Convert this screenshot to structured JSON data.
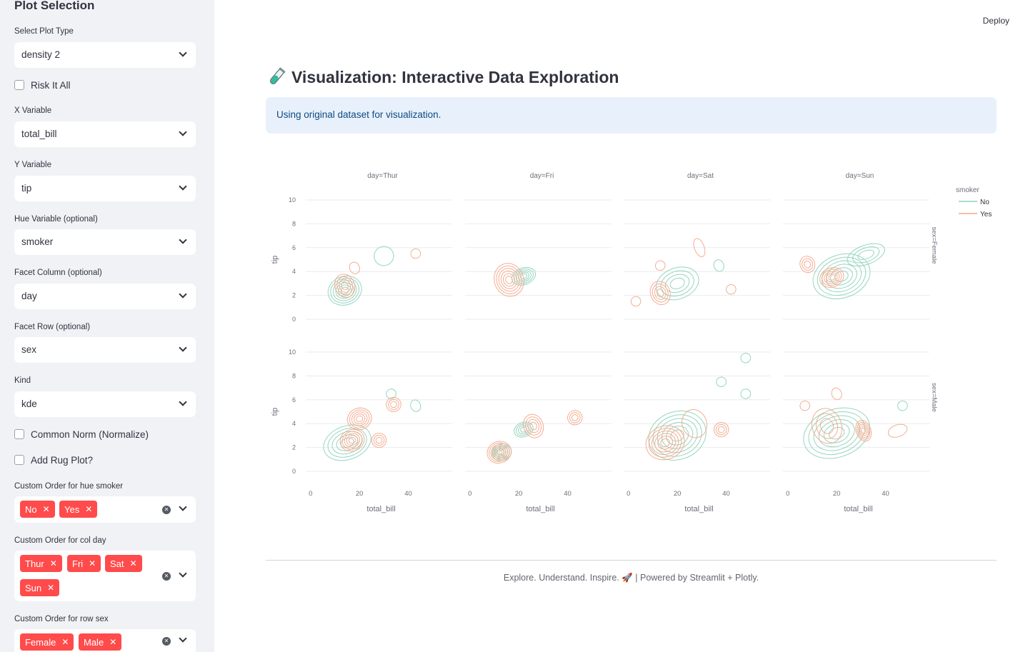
{
  "sidebar": {
    "title": "Plot Selection",
    "plot_type": {
      "label": "Select Plot Type",
      "value": "density 2"
    },
    "risk": {
      "label": "Risk It All"
    },
    "x_var": {
      "label": "X Variable",
      "value": "total_bill"
    },
    "y_var": {
      "label": "Y Variable",
      "value": "tip"
    },
    "hue_var": {
      "label": "Hue Variable (optional)",
      "value": "smoker"
    },
    "facet_col": {
      "label": "Facet Column (optional)",
      "value": "day"
    },
    "facet_row": {
      "label": "Facet Row (optional)",
      "value": "sex"
    },
    "kind": {
      "label": "Kind",
      "value": "kde"
    },
    "common_norm": {
      "label": "Common Norm (Normalize)"
    },
    "rug": {
      "label": "Add Rug Plot?"
    },
    "order_hue": {
      "label": "Custom Order for hue smoker",
      "tags": [
        "No",
        "Yes"
      ]
    },
    "order_col": {
      "label": "Custom Order for col day",
      "tags": [
        "Thur",
        "Fri",
        "Sat",
        "Sun"
      ]
    },
    "order_row": {
      "label": "Custom Order for row sex",
      "tags": [
        "Female",
        "Male"
      ]
    }
  },
  "header": {
    "deploy_label": "Deploy"
  },
  "main": {
    "title_icon": "test-tube-icon",
    "title": "Visualization: Interactive Data Exploration",
    "info": "Using original dataset for visualization.",
    "footer": "Explore. Understand. Inspire. 🚀 | Powered by Streamlit + Plotly."
  },
  "colors": {
    "no": "#8fd3bb",
    "yes": "#f4a98d",
    "accent": "#ff4b4b"
  },
  "chart_data": {
    "type": "density_contour",
    "col_titles": [
      "day=Thur",
      "day=Fri",
      "day=Sat",
      "day=Sun"
    ],
    "row_titles": [
      "sex=Female",
      "sex=Male"
    ],
    "xlabel": "total_bill",
    "ylabel": "tip",
    "x_ticks": [
      0,
      20,
      40
    ],
    "y_ticks": [
      0,
      2,
      4,
      6,
      8,
      10
    ],
    "xlim": [
      -2,
      58
    ],
    "ylim": [
      0,
      10
    ],
    "legend": {
      "title": "smoker",
      "placement": "top-right",
      "items": [
        "No",
        "Yes"
      ]
    },
    "series": [
      {
        "name": "No",
        "color": "#8fd3bb",
        "contours": [
          {
            "row": 0,
            "col": 0,
            "x": 14,
            "y": 2.4,
            "rx": 7,
            "ry": 1.2,
            "levels": 6
          },
          {
            "row": 0,
            "col": 0,
            "x": 30,
            "y": 5.3,
            "rx": 4,
            "ry": 0.8,
            "levels": 1
          },
          {
            "row": 0,
            "col": 1,
            "x": 22,
            "y": 3.6,
            "rx": 5,
            "ry": 0.7,
            "levels": 5
          },
          {
            "row": 0,
            "col": 2,
            "x": 20,
            "y": 3.0,
            "rx": 9,
            "ry": 1.3,
            "levels": 4
          },
          {
            "row": 0,
            "col": 2,
            "x": 37,
            "y": 4.5,
            "rx": 2,
            "ry": 0.5,
            "levels": 1
          },
          {
            "row": 0,
            "col": 3,
            "x": 22,
            "y": 3.6,
            "rx": 12,
            "ry": 1.8,
            "levels": 6
          },
          {
            "row": 0,
            "col": 3,
            "x": 32,
            "y": 5.4,
            "rx": 8,
            "ry": 0.8,
            "levels": 3
          },
          {
            "row": 1,
            "col": 0,
            "x": 15,
            "y": 2.4,
            "rx": 10,
            "ry": 1.4,
            "levels": 5
          },
          {
            "row": 1,
            "col": 0,
            "x": 33,
            "y": 6.5,
            "rx": 2,
            "ry": 0.4,
            "levels": 1
          },
          {
            "row": 1,
            "col": 0,
            "x": 43,
            "y": 5.5,
            "rx": 2,
            "ry": 0.5,
            "levels": 1
          },
          {
            "row": 1,
            "col": 1,
            "x": 13,
            "y": 1.6,
            "rx": 4,
            "ry": 0.7,
            "levels": 5
          },
          {
            "row": 1,
            "col": 1,
            "x": 22,
            "y": 3.5,
            "rx": 4,
            "ry": 0.6,
            "levels": 4
          },
          {
            "row": 1,
            "col": 2,
            "x": 20,
            "y": 3.0,
            "rx": 12,
            "ry": 2.0,
            "levels": 6
          },
          {
            "row": 1,
            "col": 2,
            "x": 38,
            "y": 7.5,
            "rx": 2,
            "ry": 0.4,
            "levels": 1
          },
          {
            "row": 1,
            "col": 2,
            "x": 48,
            "y": 9.5,
            "rx": 2,
            "ry": 0.4,
            "levels": 1
          },
          {
            "row": 1,
            "col": 2,
            "x": 48,
            "y": 6.5,
            "rx": 2,
            "ry": 0.4,
            "levels": 1
          },
          {
            "row": 1,
            "col": 3,
            "x": 20,
            "y": 3.2,
            "rx": 14,
            "ry": 2.0,
            "levels": 6
          },
          {
            "row": 1,
            "col": 3,
            "x": 47,
            "y": 5.5,
            "rx": 2,
            "ry": 0.4,
            "levels": 1
          }
        ]
      },
      {
        "name": "Yes",
        "color": "#f4a98d",
        "contours": [
          {
            "row": 0,
            "col": 0,
            "x": 14,
            "y": 2.8,
            "rx": 4,
            "ry": 1.0,
            "levels": 4
          },
          {
            "row": 0,
            "col": 0,
            "x": 18,
            "y": 4.3,
            "rx": 2,
            "ry": 0.5,
            "levels": 1
          },
          {
            "row": 0,
            "col": 0,
            "x": 43,
            "y": 5.5,
            "rx": 2,
            "ry": 0.4,
            "levels": 1
          },
          {
            "row": 0,
            "col": 1,
            "x": 16,
            "y": 3.3,
            "rx": 6,
            "ry": 1.4,
            "levels": 6
          },
          {
            "row": 0,
            "col": 2,
            "x": 13,
            "y": 2.2,
            "rx": 4,
            "ry": 1.0,
            "levels": 4
          },
          {
            "row": 0,
            "col": 2,
            "x": 29,
            "y": 6.0,
            "rx": 2,
            "ry": 0.8,
            "levels": 1
          },
          {
            "row": 0,
            "col": 2,
            "x": 13,
            "y": 4.5,
            "rx": 2,
            "ry": 0.4,
            "levels": 1
          },
          {
            "row": 0,
            "col": 2,
            "x": 42,
            "y": 2.5,
            "rx": 2,
            "ry": 0.4,
            "levels": 1
          },
          {
            "row": 0,
            "col": 2,
            "x": 3,
            "y": 1.5,
            "rx": 2,
            "ry": 0.4,
            "levels": 1
          },
          {
            "row": 0,
            "col": 3,
            "x": 18,
            "y": 3.5,
            "rx": 5,
            "ry": 0.8,
            "levels": 5
          },
          {
            "row": 0,
            "col": 3,
            "x": 8,
            "y": 4.6,
            "rx": 3,
            "ry": 0.7,
            "levels": 3
          },
          {
            "row": 1,
            "col": 0,
            "x": 17,
            "y": 2.6,
            "rx": 5,
            "ry": 0.9,
            "levels": 5
          },
          {
            "row": 1,
            "col": 0,
            "x": 20,
            "y": 4.4,
            "rx": 5,
            "ry": 0.9,
            "levels": 5
          },
          {
            "row": 1,
            "col": 0,
            "x": 28,
            "y": 2.6,
            "rx": 3,
            "ry": 0.6,
            "levels": 3
          },
          {
            "row": 1,
            "col": 0,
            "x": 34,
            "y": 5.6,
            "rx": 3,
            "ry": 0.6,
            "levels": 3
          },
          {
            "row": 1,
            "col": 1,
            "x": 12,
            "y": 1.6,
            "rx": 5,
            "ry": 0.9,
            "levels": 6
          },
          {
            "row": 1,
            "col": 1,
            "x": 26,
            "y": 3.8,
            "rx": 4,
            "ry": 1.0,
            "levels": 4
          },
          {
            "row": 1,
            "col": 1,
            "x": 43,
            "y": 4.5,
            "rx": 3,
            "ry": 0.6,
            "levels": 3
          },
          {
            "row": 1,
            "col": 2,
            "x": 15,
            "y": 2.4,
            "rx": 8,
            "ry": 1.4,
            "levels": 6
          },
          {
            "row": 1,
            "col": 2,
            "x": 38,
            "y": 3.5,
            "rx": 3,
            "ry": 0.6,
            "levels": 3
          },
          {
            "row": 1,
            "col": 2,
            "x": 27,
            "y": 4.0,
            "rx": 5,
            "ry": 1.2,
            "levels": 1
          },
          {
            "row": 1,
            "col": 3,
            "x": 16,
            "y": 3.8,
            "rx": 6,
            "ry": 1.5,
            "levels": 3
          },
          {
            "row": 1,
            "col": 3,
            "x": 31,
            "y": 3.4,
            "rx": 3,
            "ry": 0.9,
            "levels": 5
          },
          {
            "row": 1,
            "col": 3,
            "x": 45,
            "y": 3.4,
            "rx": 4,
            "ry": 0.5,
            "levels": 1
          },
          {
            "row": 1,
            "col": 3,
            "x": 7,
            "y": 5.5,
            "rx": 2,
            "ry": 0.4,
            "levels": 1
          },
          {
            "row": 1,
            "col": 3,
            "x": 20,
            "y": 6.5,
            "rx": 2,
            "ry": 0.5,
            "levels": 1
          }
        ]
      }
    ]
  }
}
